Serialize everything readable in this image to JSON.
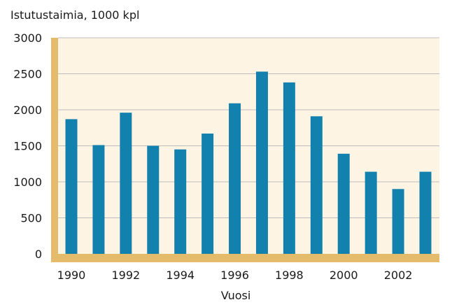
{
  "chart_data": {
    "type": "bar",
    "ylabel": "Istutustaimia, 1000 kpl",
    "xlabel": "Vuosi",
    "categories": [
      "1990",
      "1991",
      "1992",
      "1993",
      "1994",
      "1995",
      "1996",
      "1997",
      "1998",
      "1999",
      "2000",
      "2001",
      "2002",
      "2003"
    ],
    "x_tick_labels": [
      "1990",
      "1992",
      "1994",
      "1996",
      "1998",
      "2000",
      "2002"
    ],
    "y_ticks": [
      "0",
      "500",
      "1000",
      "1500",
      "2000",
      "2500",
      "3000"
    ],
    "values": [
      1870,
      1510,
      1960,
      1500,
      1450,
      1670,
      2090,
      2530,
      2380,
      1910,
      1390,
      1140,
      900,
      1140
    ],
    "ylim": [
      0,
      3000
    ],
    "grid": true,
    "legend": "none",
    "colors": {
      "bar": "#1381ad",
      "plot_background": "#fdf4e4",
      "axis_band": "#e3bb6a",
      "grid": "#bdbdbd"
    }
  }
}
